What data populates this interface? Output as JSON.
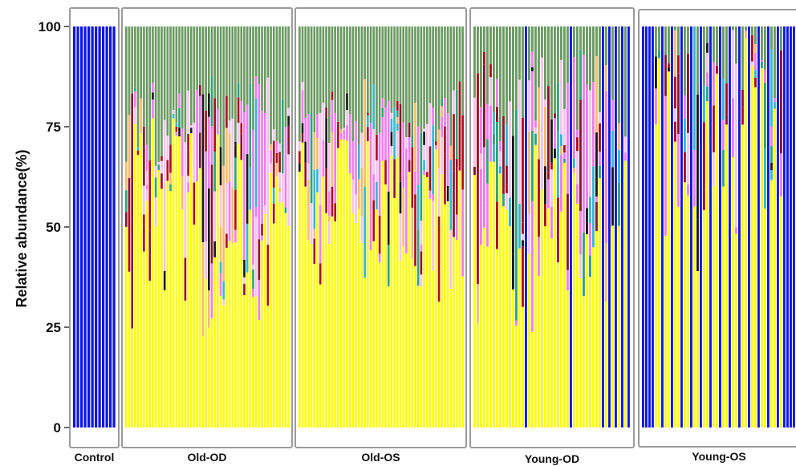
{
  "chart_data": {
    "type": "bar",
    "stacked": true,
    "title": "",
    "xlabel": "",
    "ylabel": "Relative abundance(%)",
    "ylim": [
      0,
      100
    ],
    "yticks": [
      0,
      25,
      50,
      75,
      100
    ],
    "grid": false,
    "legend": "none",
    "groups": [
      {
        "label": "Control",
        "bars": 12
      },
      {
        "label": "Old-OD",
        "bars": 56
      },
      {
        "label": "Old-OS",
        "bars": 56
      },
      {
        "label": "Young-OD",
        "bars": 49
      },
      {
        "label": "Young-OS",
        "bars": 48
      }
    ],
    "series_colors": [
      "#0d15e6",
      "#ffff00",
      "#f07cf0",
      "#6b9a62",
      "#ab0e1e",
      "#2fa37a",
      "#1a1a1a",
      "#f5bb6e",
      "#33b8d0",
      "#f6c3ee",
      "#8b1430"
    ],
    "bars_summary": [
      {
        "group": "Control",
        "blue": 100
      },
      {
        "group": "Old-OD",
        "green_top_min": 12,
        "green_top_max": 35,
        "yellow_typical": [
          22,
          78
        ]
      },
      {
        "group": "Old-OS",
        "green_top_min": 13,
        "green_top_max": 30,
        "yellow_typical": [
          30,
          72
        ]
      },
      {
        "group": "Young-OD",
        "green_top_min": 5,
        "green_top_max": 30,
        "yellow_typical": [
          23,
          72
        ],
        "blue_full_bars": 7
      },
      {
        "group": "Young-OS",
        "green_top_min": 0,
        "green_top_max": 18,
        "yellow_typical": [
          38,
          100
        ],
        "blue_full_bars": 14
      }
    ]
  }
}
